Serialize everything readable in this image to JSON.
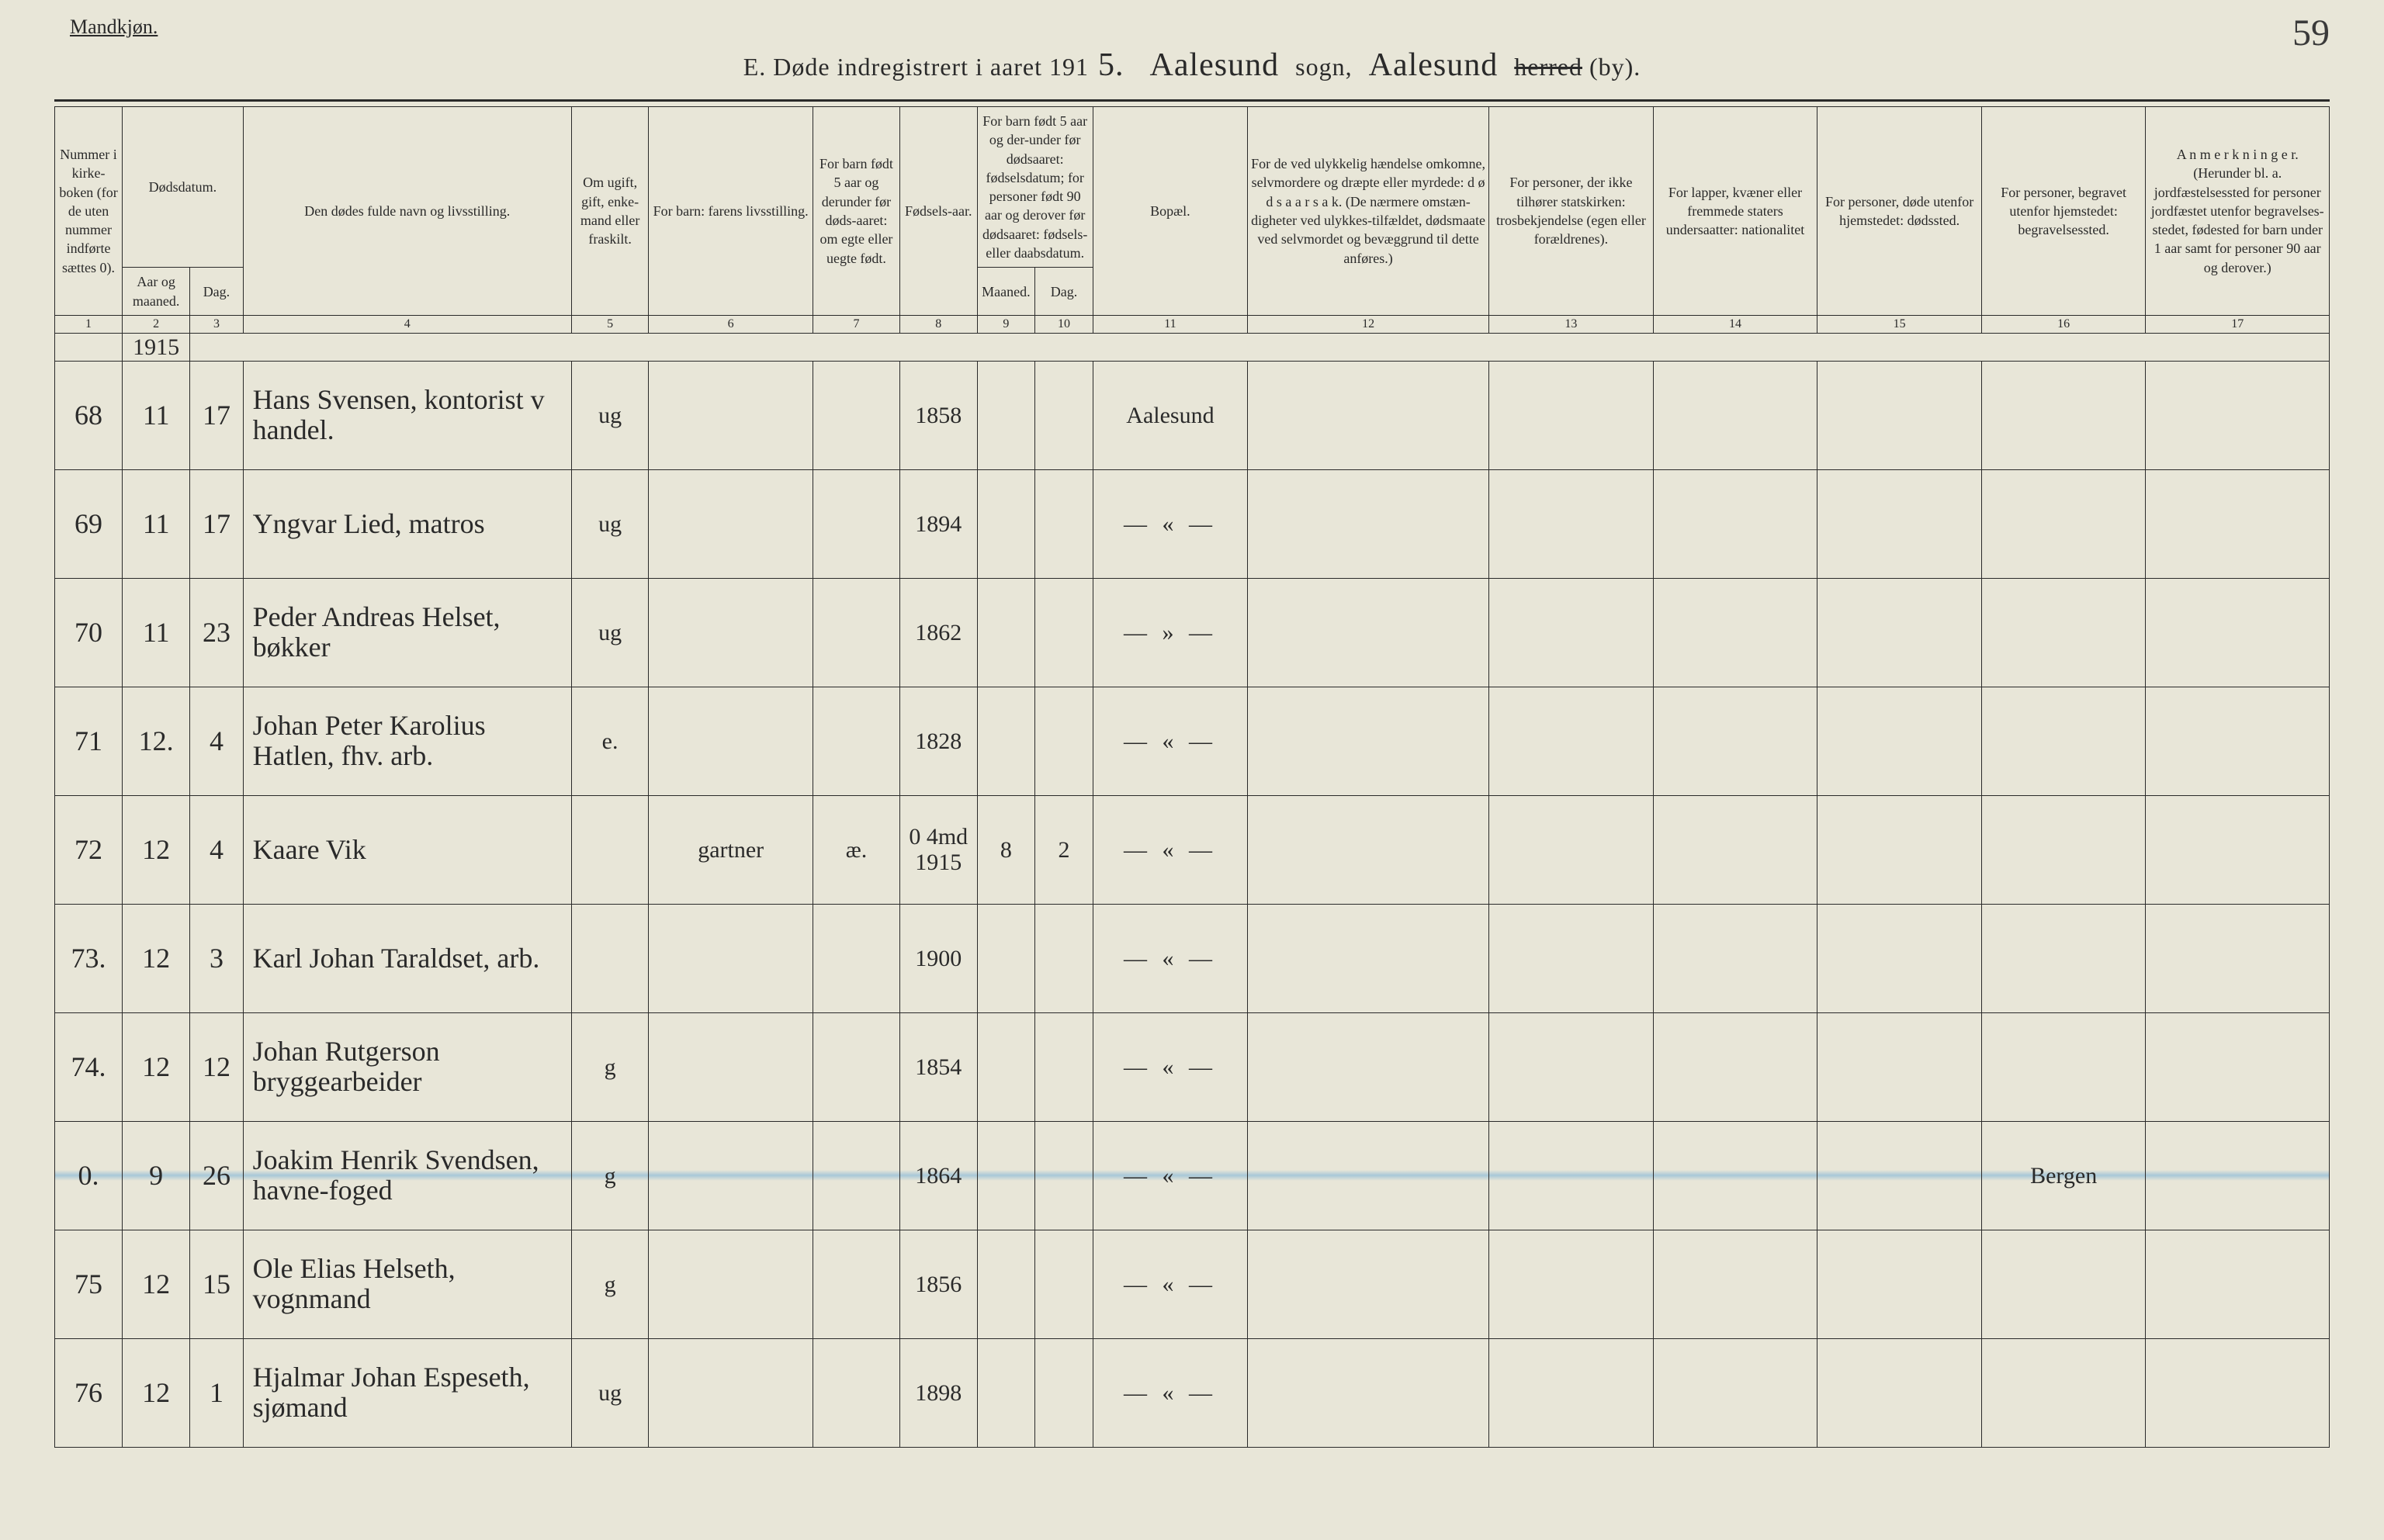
{
  "header": {
    "gender": "Mandkjøn.",
    "page_number": "59",
    "title_prefix": "E.   Døde indregistrert i aaret 191",
    "year_suffix": "5.",
    "sogn_script": "Aalesund",
    "sogn_label": "sogn,",
    "herred_script": "Aalesund",
    "herred_struck": "herred",
    "by_label": "(by)."
  },
  "columns": {
    "c1": "Nummer i kirke-boken (for de uten nummer indførte sættes 0).",
    "c2": "Dødsdatum.",
    "c2a": "Aar og maaned.",
    "c2b": "Dag.",
    "c4": "Den dødes fulde navn og livsstilling.",
    "c5": "Om ugift, gift, enke-mand eller fraskilt.",
    "c6": "For barn: farens livsstilling.",
    "c7": "For barn født 5 aar og derunder før døds-aaret: om egte eller uegte født.",
    "c8": "Fødsels-aar.",
    "c9": "For barn født 5 aar og der-under før dødsaaret: fødselsdatum; for personer født 90 aar og derover før dødsaaret: fødsels- eller daabsdatum.",
    "c9a": "Maaned.",
    "c9b": "Dag.",
    "c11": "Bopæl.",
    "c12": "For de ved ulykkelig hændelse omkomne, selvmordere og dræpte eller myrdede: d ø d s a a r s a k. (De nærmere omstæn-digheter ved ulykkes-tilfældet, dødsmaate ved selvmordet og bevæggrund til dette anføres.)",
    "c13": "For personer, der ikke tilhører statskirken: trosbekjendelse (egen eller forældrenes).",
    "c14": "For lapper, kvæner eller fremmede staters undersaatter: nationalitet",
    "c15": "For personer, døde utenfor hjemstedet: dødssted.",
    "c16": "For personer, begravet utenfor hjemstedet: begravelsessted.",
    "c17": "A n m e r k n i n g e r. (Herunder bl. a. jordfæstelsessted for personer jordfæstet utenfor begravelses-stedet, fødested for barn under 1 aar samt for personer 90 aar og derover.)",
    "nums": [
      "1",
      "2",
      "3",
      "4",
      "5",
      "6",
      "7",
      "8",
      "9",
      "10",
      "11",
      "12",
      "13",
      "14",
      "15",
      "16",
      "17"
    ]
  },
  "year_row": "1915",
  "rows": [
    {
      "n": "68",
      "m": "11",
      "d": "17",
      "name": "Hans Svensen, kontorist v handel.",
      "stat": "ug",
      "far": "",
      "egte": "",
      "faar": "1858",
      "fm": "",
      "fd": "",
      "bop": "Aalesund",
      "c16": ""
    },
    {
      "n": "69",
      "m": "11",
      "d": "17",
      "name": "Yngvar Lied, matros",
      "stat": "ug",
      "far": "",
      "egte": "",
      "faar": "1894",
      "fm": "",
      "fd": "",
      "bop": "— « —",
      "c16": ""
    },
    {
      "n": "70",
      "m": "11",
      "d": "23",
      "name": "Peder Andreas Helset, bøkker",
      "stat": "ug",
      "far": "",
      "egte": "",
      "faar": "1862",
      "fm": "",
      "fd": "",
      "bop": "— » —",
      "c16": ""
    },
    {
      "n": "71",
      "m": "12.",
      "d": "4",
      "name": "Johan Peter Karolius Hatlen, fhv. arb.",
      "stat": "e.",
      "far": "",
      "egte": "",
      "faar": "1828",
      "fm": "",
      "fd": "",
      "bop": "— « —",
      "c16": ""
    },
    {
      "n": "72",
      "m": "12",
      "d": "4",
      "name": "Kaare Vik",
      "stat": "",
      "far": "gartner",
      "egte": "æ.",
      "faar": "1915",
      "fm": "8",
      "fd": "2",
      "bop": "— « —",
      "c16": "",
      "pencil": "0  4md"
    },
    {
      "n": "73.",
      "m": "12",
      "d": "3",
      "name": "Karl Johan Taraldset, arb.",
      "stat": "",
      "far": "",
      "egte": "",
      "faar": "1900",
      "fm": "",
      "fd": "",
      "bop": "— « —",
      "c16": ""
    },
    {
      "n": "74.",
      "m": "12",
      "d": "12",
      "name": "Johan Rutgerson bryggearbeider",
      "stat": "g",
      "far": "",
      "egte": "",
      "faar": "1854",
      "fm": "",
      "fd": "",
      "bop": "— « —",
      "c16": ""
    },
    {
      "n": "0.",
      "m": "9",
      "d": "26",
      "name": "Joakim Henrik Svendsen, havne-foged",
      "stat": "g",
      "far": "",
      "egte": "",
      "faar": "1864",
      "fm": "",
      "fd": "",
      "bop": "— « —",
      "c16": "Bergen",
      "hl": true
    },
    {
      "n": "75",
      "m": "12",
      "d": "15",
      "name": "Ole Elias Helseth, vognmand",
      "stat": "g",
      "far": "",
      "egte": "",
      "faar": "1856",
      "fm": "",
      "fd": "",
      "bop": "— « —",
      "c16": ""
    },
    {
      "n": "76",
      "m": "12",
      "d": "1",
      "name": "Hjalmar Johan Espeseth, sjømand",
      "stat": "ug",
      "far": "",
      "egte": "",
      "faar": "1898",
      "fm": "",
      "fd": "",
      "bop": "— « —",
      "c16": ""
    }
  ]
}
